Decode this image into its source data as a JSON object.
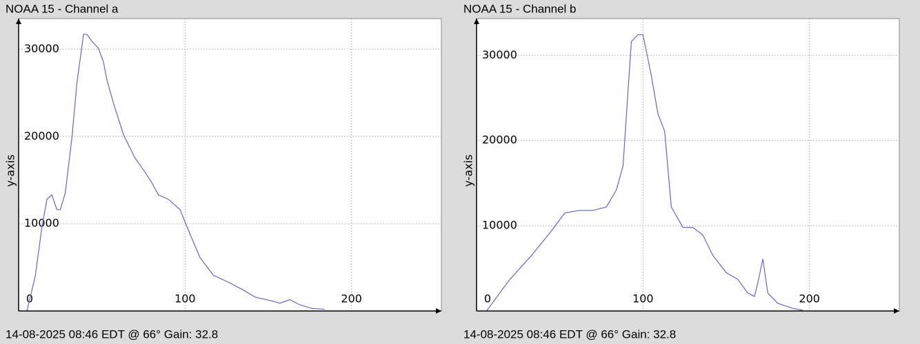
{
  "chart_data": [
    {
      "type": "line",
      "title": "NOAA 15 - Channel a",
      "ylabel": "y-axis",
      "footer": "14-08-2025 08:46 EDT @ 66° Gain: 32.8",
      "xlim": [
        0,
        254
      ],
      "ylim": [
        0,
        33500
      ],
      "xticks": [
        0,
        100,
        200
      ],
      "yticks": [
        10000,
        20000,
        30000
      ],
      "grid": true,
      "series": [
        {
          "color": "#6464cc",
          "x": [
            5,
            10,
            14,
            17,
            20,
            23,
            25,
            28,
            32,
            35,
            39,
            41,
            44,
            48,
            51,
            53,
            57,
            63,
            70,
            76,
            80,
            84,
            90,
            97,
            103,
            109,
            117,
            126,
            134,
            142,
            151,
            157,
            163,
            169,
            176,
            184
          ],
          "values": [
            0,
            4000,
            9600,
            12800,
            13300,
            11600,
            11600,
            13500,
            19800,
            26100,
            31700,
            31700,
            30900,
            30100,
            28500,
            26500,
            23800,
            20200,
            17500,
            15900,
            14700,
            13300,
            12800,
            11600,
            8800,
            6100,
            4100,
            3300,
            2500,
            1600,
            1200,
            900,
            1300,
            700,
            300,
            200
          ]
        }
      ]
    },
    {
      "type": "line",
      "title": "NOAA 15 - Channel b",
      "ylabel": "y-axis",
      "footer": "14-08-2025 08:46 EDT @ 66° Gain: 32.8",
      "xlim": [
        0,
        254
      ],
      "ylim": [
        0,
        34300
      ],
      "xticks": [
        0,
        100,
        200
      ],
      "yticks": [
        10000,
        20000,
        30000
      ],
      "grid": true,
      "series": [
        {
          "color": "#6464cc",
          "x": [
            6,
            12,
            20,
            33,
            45,
            53,
            62,
            70,
            78,
            84,
            88,
            93,
            97,
            100,
            105,
            109,
            113,
            117,
            124,
            130,
            136,
            142,
            150,
            157,
            163,
            167,
            169,
            172,
            175,
            181,
            190,
            196
          ],
          "values": [
            0,
            1600,
            3700,
            6500,
            9400,
            11500,
            11800,
            11800,
            12200,
            14200,
            17000,
            31600,
            32400,
            32400,
            27600,
            23100,
            21100,
            12200,
            9800,
            9800,
            8900,
            6500,
            4500,
            3700,
            2100,
            1700,
            3300,
            6100,
            2100,
            900,
            300,
            100
          ]
        }
      ]
    }
  ]
}
